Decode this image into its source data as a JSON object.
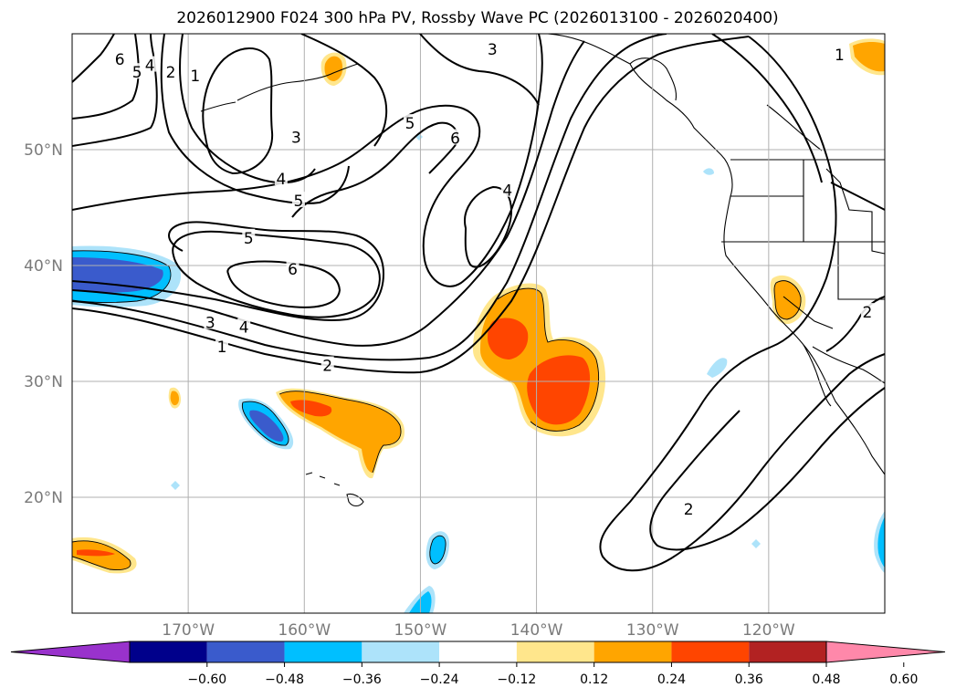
{
  "chart_data": {
    "type": "contour-map",
    "title": "2026012900 F024 300 hPa PV, Rossby Wave PC (2026013100 - 2026020400)",
    "lon_range": [
      -180,
      -110
    ],
    "lat_range": [
      10,
      60
    ],
    "x_ticks": [
      {
        "value": -170,
        "label": "170°W"
      },
      {
        "value": -160,
        "label": "160°W"
      },
      {
        "value": -150,
        "label": "150°W"
      },
      {
        "value": -140,
        "label": "140°W"
      },
      {
        "value": -130,
        "label": "130°W"
      },
      {
        "value": -120,
        "label": "120°W"
      }
    ],
    "y_ticks": [
      {
        "value": 50,
        "label": "50°N"
      },
      {
        "value": 40,
        "label": "40°N"
      },
      {
        "value": 30,
        "label": "30°N"
      },
      {
        "value": 20,
        "label": "20°N"
      }
    ],
    "grid": true,
    "pv_contour_labels": [
      {
        "text": "6",
        "lon": -175.9,
        "lat": 57.7
      },
      {
        "text": "5",
        "lon": -174.4,
        "lat": 56.6
      },
      {
        "text": "4",
        "lon": -173.3,
        "lat": 57.2
      },
      {
        "text": "2",
        "lon": -171.5,
        "lat": 56.6
      },
      {
        "text": "1",
        "lon": -169.4,
        "lat": 56.3
      },
      {
        "text": "3",
        "lon": -160.7,
        "lat": 51.0
      },
      {
        "text": "5",
        "lon": -150.9,
        "lat": 52.2
      },
      {
        "text": "6",
        "lon": -147.0,
        "lat": 50.9
      },
      {
        "text": "3",
        "lon": -143.8,
        "lat": 58.6
      },
      {
        "text": "4",
        "lon": -162.0,
        "lat": 47.4
      },
      {
        "text": "5",
        "lon": -160.5,
        "lat": 45.5
      },
      {
        "text": "4",
        "lon": -142.5,
        "lat": 46.4
      },
      {
        "text": "5",
        "lon": -164.8,
        "lat": 42.3
      },
      {
        "text": "6",
        "lon": -161.0,
        "lat": 39.6
      },
      {
        "text": "3",
        "lon": -168.1,
        "lat": 35.0
      },
      {
        "text": "4",
        "lon": -165.2,
        "lat": 34.6
      },
      {
        "text": "1",
        "lon": -167.1,
        "lat": 32.9
      },
      {
        "text": "2",
        "lon": -158.0,
        "lat": 31.3
      },
      {
        "text": "1",
        "lon": -113.9,
        "lat": 58.1
      },
      {
        "text": "2",
        "lon": -111.5,
        "lat": 35.9
      },
      {
        "text": "2",
        "lon": -126.9,
        "lat": 18.9
      }
    ],
    "pc_anomaly_regions": [
      {
        "name": "negative west edge",
        "lon": -177.0,
        "lat": 39.1,
        "max_level": -0.48
      },
      {
        "name": "negative north of Hawaii",
        "lon": -163.6,
        "lat": 25.7,
        "max_level": -0.48
      },
      {
        "name": "positive northwest of Hawaii",
        "lon": -156.0,
        "lat": 26.0,
        "max_level": 0.36
      },
      {
        "name": "positive central Pacific",
        "lon": -140.0,
        "lat": 31.5,
        "max_level": 0.36
      },
      {
        "name": "positive California",
        "lon": -121.0,
        "lat": 36.0,
        "max_level": 0.24
      },
      {
        "name": "positive Gulf of Alaska",
        "lon": -157.6,
        "lat": 57.5,
        "max_level": 0.24
      },
      {
        "name": "positive northeast corner",
        "lon": -111.5,
        "lat": 58.7,
        "max_level": 0.24
      },
      {
        "name": "positive southwest corner",
        "lon": -176.5,
        "lat": 15.0,
        "max_level": 0.36
      },
      {
        "name": "negative south central",
        "lon": -148.3,
        "lat": 15.0,
        "max_level": -0.36
      }
    ],
    "colorbar": {
      "levels": [
        -0.6,
        -0.48,
        -0.36,
        -0.24,
        -0.12,
        0.12,
        0.24,
        0.36,
        0.48,
        0.6
      ],
      "tick_labels": [
        "−0.60",
        "−0.48",
        "−0.36",
        "−0.24",
        "−0.12",
        "0.12",
        "0.24",
        "0.36",
        "0.48",
        "0.60"
      ],
      "colors": [
        "#9932cc",
        "#00008b",
        "#3a5bcc",
        "#00bfff",
        "#ade3fa",
        "#ffffff",
        "#ffe68c",
        "#ffa500",
        "#ff4500",
        "#b22222",
        "#ff88aa"
      ],
      "extend": "both",
      "orientation": "horizontal"
    }
  }
}
